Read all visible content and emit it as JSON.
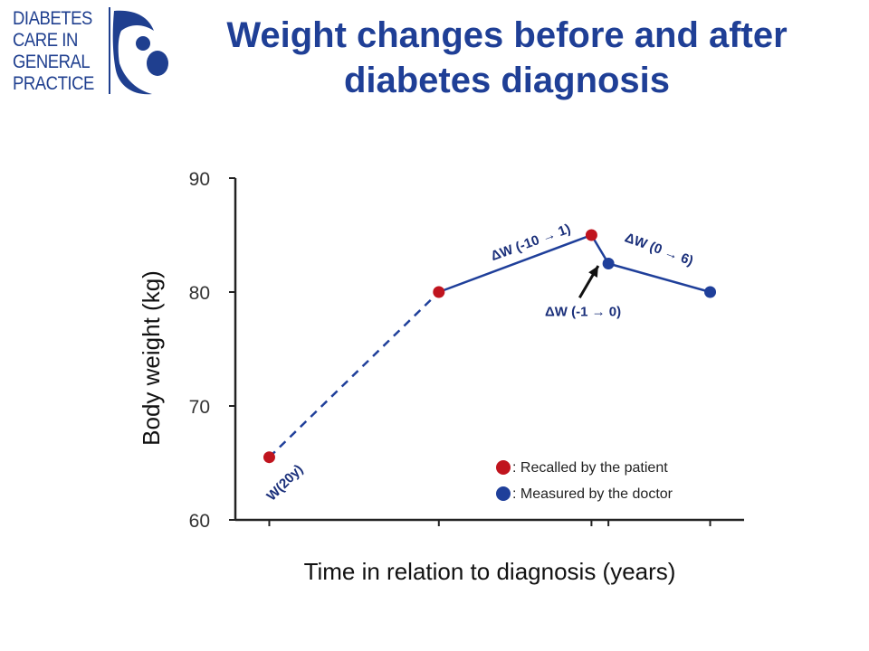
{
  "logo": {
    "lines": [
      "DIABETES",
      "CARE IN",
      "GENERAL",
      "PRACTICE"
    ],
    "color": "#1f3f8f"
  },
  "title": "Weight changes before and after diabetes diagnosis",
  "chart_data": {
    "type": "line",
    "xlabel": "Time in relation to diagnosis (years)",
    "ylabel": "Body weight (kg)",
    "ylim": [
      60,
      90
    ],
    "yticks": [
      60,
      70,
      80,
      90
    ],
    "xlim": [
      -22,
      8
    ],
    "x_tick_positions": [
      -20,
      -10,
      -1,
      0,
      6
    ],
    "grid": false,
    "points": [
      {
        "x": -20,
        "y": 65.5,
        "source": "recalled"
      },
      {
        "x": -10,
        "y": 80,
        "source": "recalled"
      },
      {
        "x": -1,
        "y": 85,
        "source": "recalled"
      },
      {
        "x": 0,
        "y": 82.5,
        "source": "measured"
      },
      {
        "x": 6,
        "y": 80,
        "source": "measured"
      }
    ],
    "segments": [
      {
        "from": 0,
        "to": 1,
        "style": "dashed"
      },
      {
        "from": 1,
        "to": 2,
        "style": "solid"
      },
      {
        "from": 2,
        "to": 3,
        "style": "solid"
      },
      {
        "from": 3,
        "to": 4,
        "style": "solid"
      }
    ],
    "annotations": [
      {
        "text": "W(20y)",
        "x": -18.9,
        "y": 63.0,
        "rotate": -45
      },
      {
        "text": "ΔW (-10 → 1)",
        "x": -4.5,
        "y": 84.0,
        "rotate": -20
      },
      {
        "text": "ΔW (0 → 6)",
        "x": 2.9,
        "y": 83.4,
        "rotate": 20
      },
      {
        "text": "ΔW (-1 → 0)",
        "x": -1.5,
        "y": 77.9,
        "rotate": 0
      }
    ],
    "arrow": {
      "from": [
        -1.7,
        79.5
      ],
      "to": [
        -0.6,
        82.3
      ]
    },
    "legend": {
      "placement": "bottom-right",
      "items": [
        {
          "label": ": Recalled by the patient",
          "color": "#c0141e"
        },
        {
          "label": ": Measured by the doctor",
          "color": "#1f3f9a"
        }
      ]
    },
    "colors": {
      "recalled": "#c0141e",
      "measured": "#1f3f9a",
      "line": "#1f3f9a",
      "axis": "#222222"
    }
  }
}
